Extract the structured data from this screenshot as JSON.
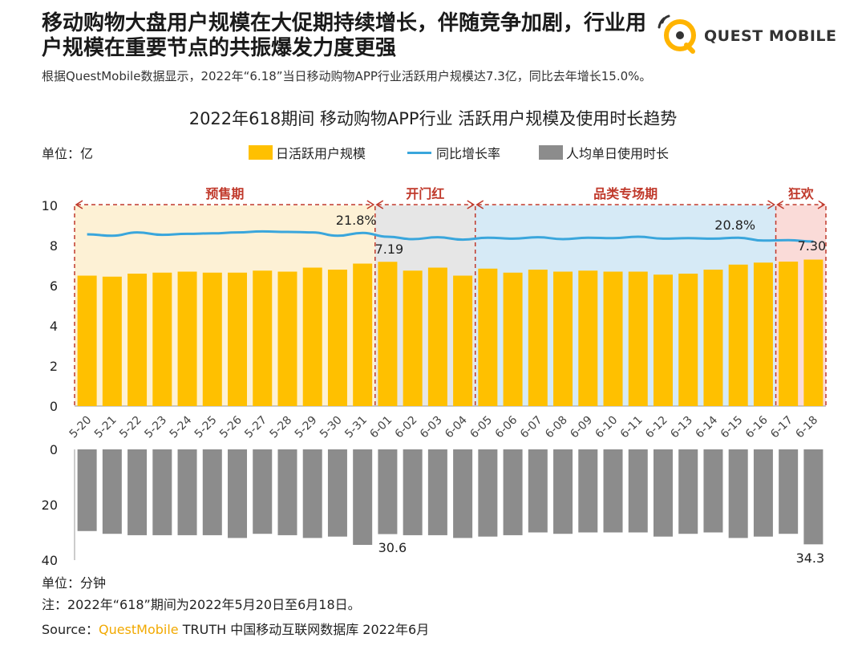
{
  "header": {
    "title": "移动购物大盘用户规模在大促期持续增长，伴随竞争加剧，行业用户规模在重要节点的共振爆发力度更强",
    "subtitle": "根据QuestMobile数据显示，2022年“6.18”当日移动购物APP行业活跃用户规模达7.3亿，同比去年增长15.0%。",
    "logo_text": "QUEST MOBILE",
    "logo_icon": "questmobile-logo-icon"
  },
  "colors": {
    "bar": "#ffc000",
    "line": "#3aa6dc",
    "gray_bar": "#8c8c8c",
    "phase_border": "#c0392b",
    "brand": "#f2a900"
  },
  "chart_data": {
    "title": "2022年618期间 移动购物APP行业 活跃用户规模及使用时长趋势",
    "unit_top": "单位：亿",
    "unit_bottom": "单位：分钟",
    "type": "bar",
    "categories": [
      "5-20",
      "5-21",
      "5-22",
      "5-23",
      "5-24",
      "5-25",
      "5-26",
      "5-27",
      "5-28",
      "5-29",
      "5-30",
      "5-31",
      "6-01",
      "6-02",
      "6-03",
      "6-04",
      "6-05",
      "6-06",
      "6-07",
      "6-08",
      "6-09",
      "6-10",
      "6-11",
      "6-12",
      "6-13",
      "6-14",
      "6-15",
      "6-16",
      "6-17",
      "6-18"
    ],
    "series": [
      {
        "name": "日活跃用户规模",
        "type": "bar",
        "values": [
          6.5,
          6.45,
          6.6,
          6.65,
          6.7,
          6.65,
          6.65,
          6.75,
          6.7,
          6.9,
          6.8,
          7.1,
          7.19,
          6.75,
          6.9,
          6.5,
          6.85,
          6.65,
          6.8,
          6.7,
          6.75,
          6.7,
          6.7,
          6.55,
          6.6,
          6.8,
          7.05,
          7.15,
          7.2,
          7.3
        ]
      },
      {
        "name": "同比增长率",
        "type": "line",
        "values": [
          21.5,
          21.2,
          21.9,
          21.4,
          21.6,
          21.7,
          21.9,
          22.1,
          22.0,
          21.9,
          21.2,
          21.8,
          21.0,
          20.5,
          20.9,
          20.4,
          20.8,
          20.6,
          20.9,
          20.5,
          20.8,
          20.7,
          21.0,
          20.6,
          20.7,
          20.6,
          20.8,
          20.2,
          20.3,
          15.0
        ],
        "unit": "%"
      },
      {
        "name": "人均单日使用时长",
        "type": "bar",
        "values": [
          29.5,
          30.5,
          31.0,
          31.0,
          31.0,
          31.0,
          32.0,
          30.5,
          31.0,
          32.0,
          31.5,
          34.5,
          30.6,
          31.0,
          31.0,
          32.0,
          31.5,
          31.0,
          30.0,
          30.5,
          30.0,
          30.0,
          30.0,
          31.5,
          30.5,
          30.0,
          32.0,
          31.5,
          30.5,
          34.3
        ]
      }
    ],
    "ylim_top": [
      0,
      10
    ],
    "yticks_top": [
      "0",
      "2",
      "4",
      "6",
      "8",
      "10"
    ],
    "ylim_bottom": [
      0,
      40
    ],
    "yticks_bottom": [
      "0",
      "20",
      "40"
    ],
    "phases": [
      {
        "label": "预售期",
        "start": 0,
        "end": 11,
        "fill": "#fdf1d5"
      },
      {
        "label": "开门红",
        "start": 12,
        "end": 15,
        "fill": "#e6e6e6"
      },
      {
        "label": "品类专场期",
        "start": 16,
        "end": 27,
        "fill": "#d6eaf6"
      },
      {
        "label": "狂欢",
        "start": 28,
        "end": 29,
        "fill": "#fadbd8"
      }
    ],
    "annotations": [
      {
        "text": "21.8%",
        "series": "rate",
        "index": 11
      },
      {
        "text": "20.8%",
        "series": "rate",
        "index": 26
      },
      {
        "text": "7.19",
        "series": "dau",
        "index": 12
      },
      {
        "text": "7.30",
        "series": "dau",
        "index": 29
      },
      {
        "text": "30.6",
        "series": "time",
        "index": 12
      },
      {
        "text": "34.3",
        "series": "time",
        "index": 29
      }
    ]
  },
  "footer": {
    "note": "注：2022年“618”期间为2022年5月20日至6月18日。",
    "source_prefix": "Source：",
    "source_brand": "QuestMobile",
    "source_rest": " TRUTH 中国移动互联网数据库 2022年6月"
  }
}
